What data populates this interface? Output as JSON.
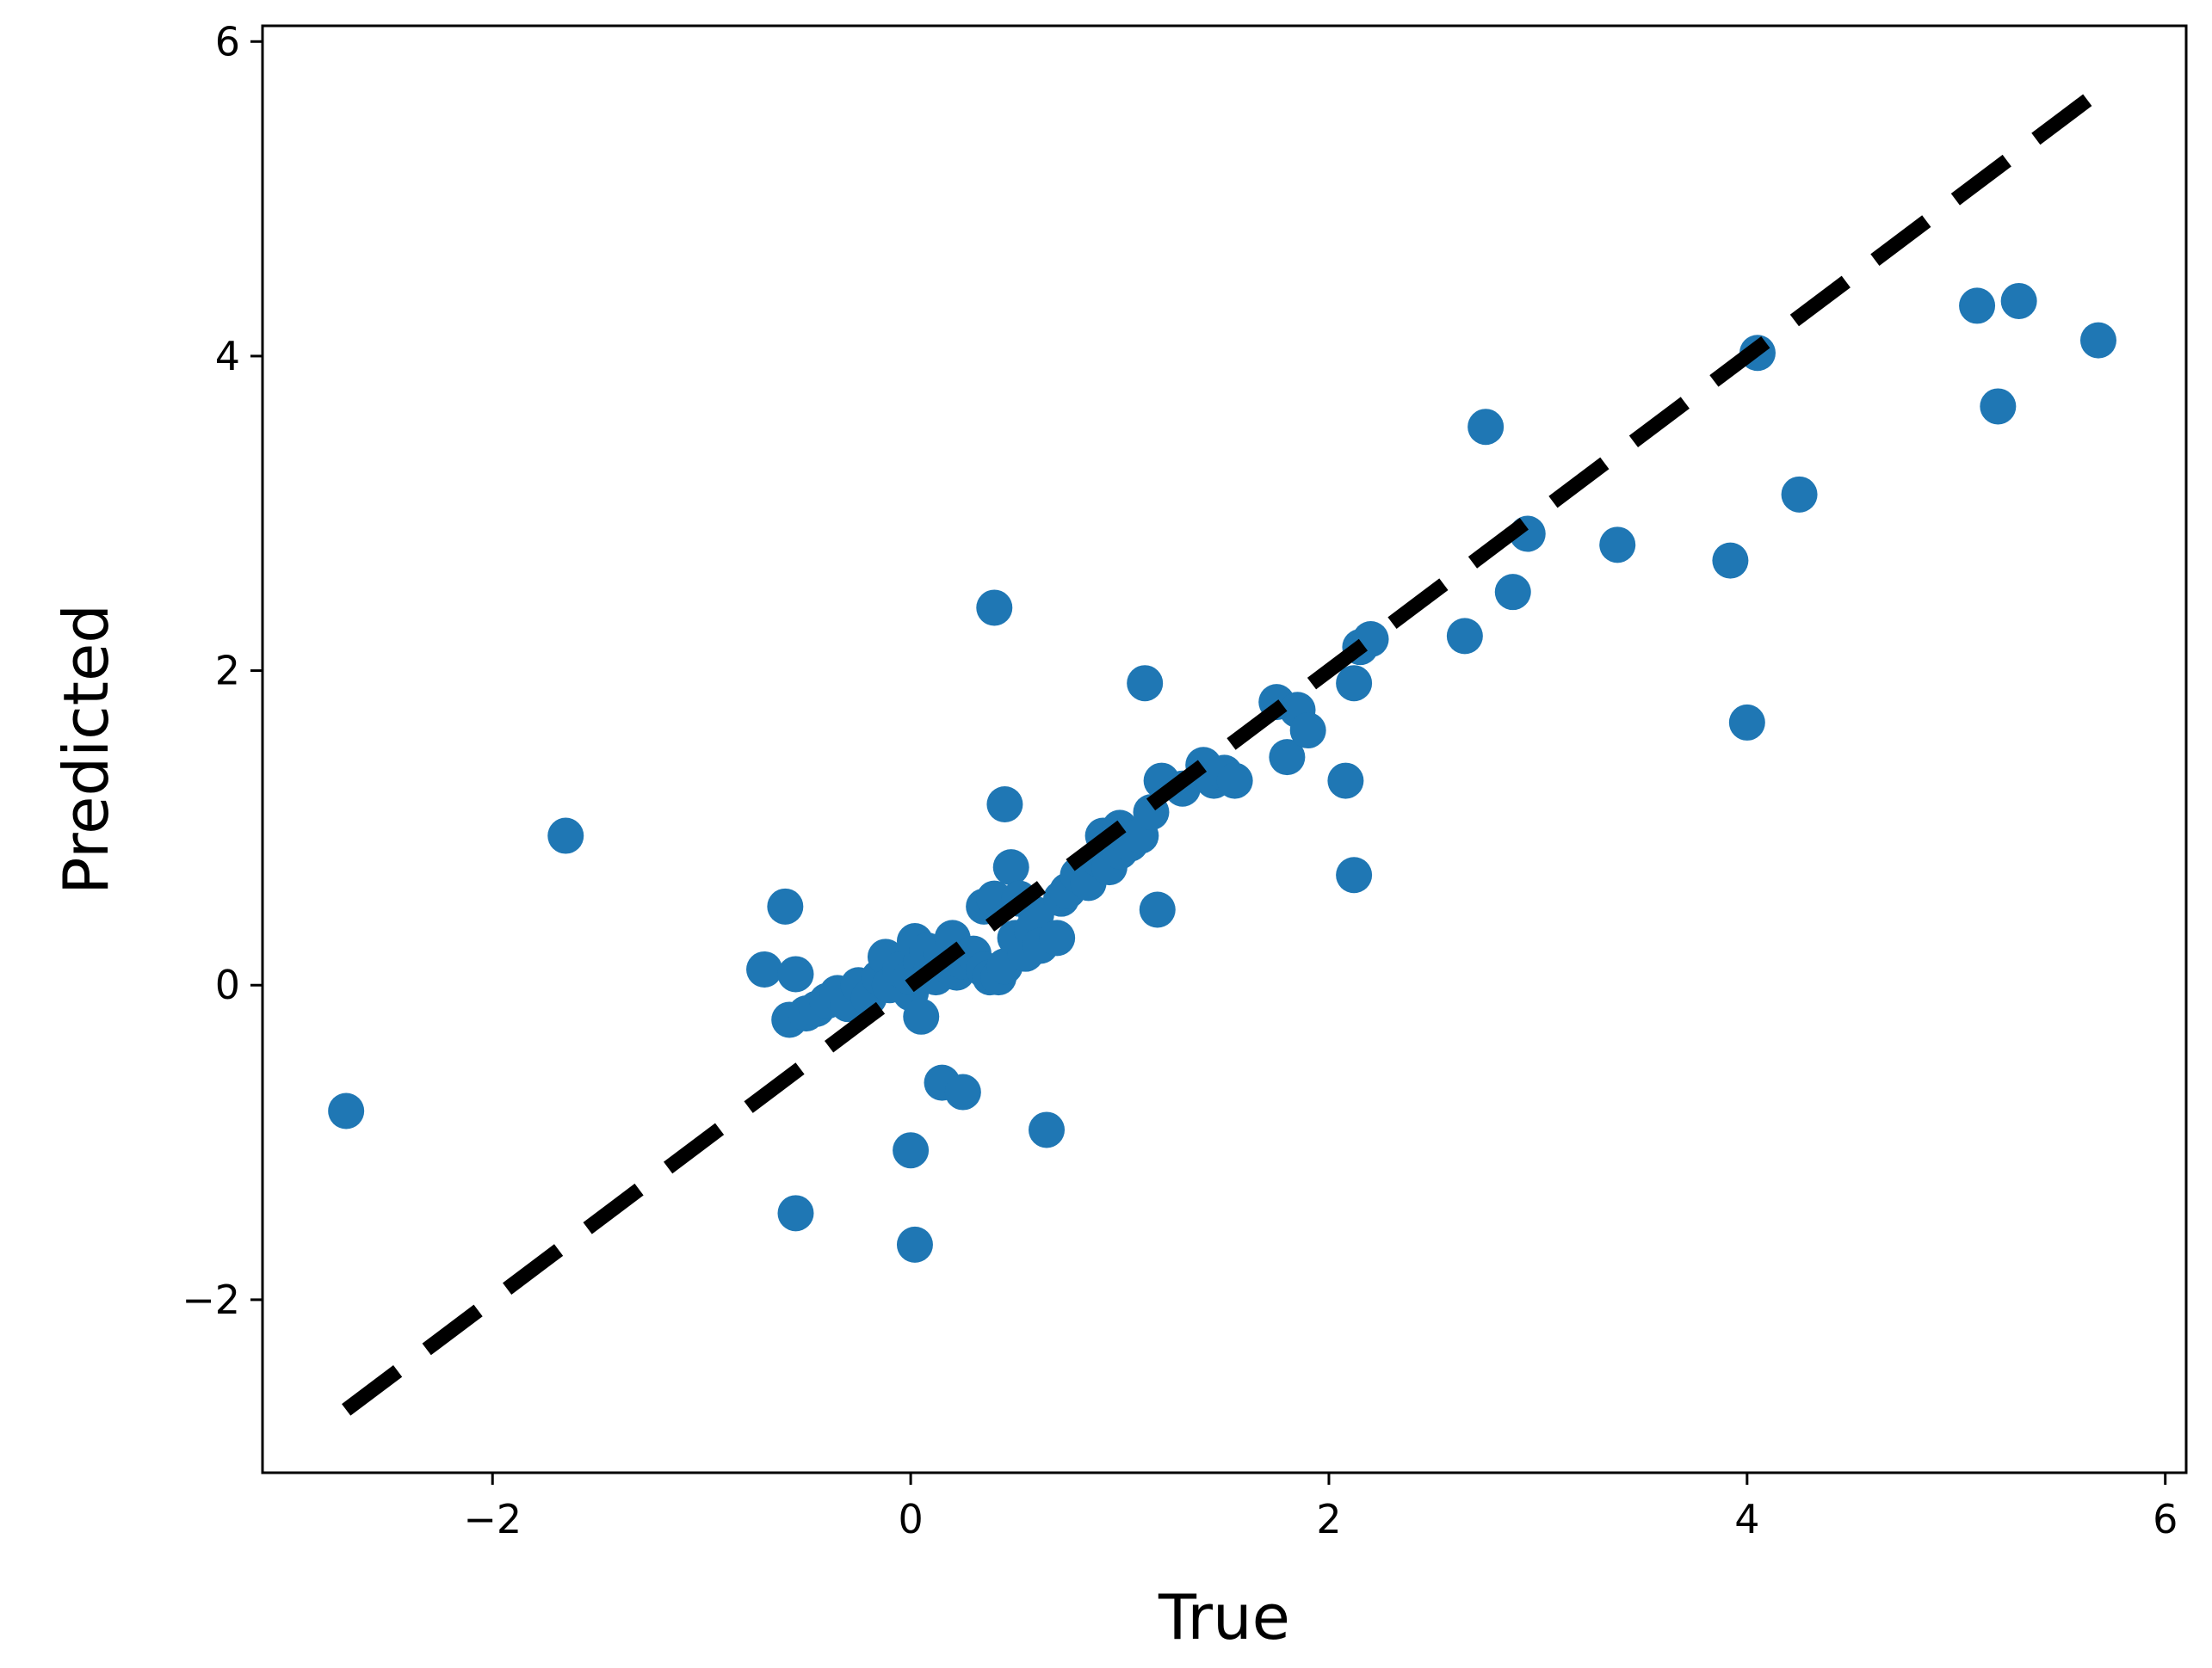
{
  "chart_data": {
    "type": "scatter",
    "title": "",
    "xlabel": "True",
    "ylabel": "Predicted",
    "xlim": [
      -3.1,
      6.1
    ],
    "ylim": [
      -3.1,
      6.1
    ],
    "xticks": [
      -2,
      0,
      2,
      4,
      6
    ],
    "yticks": [
      -2,
      0,
      2,
      4,
      6
    ],
    "xtick_labels": [
      "−2",
      "0",
      "2",
      "4",
      "6"
    ],
    "ytick_labels": [
      "−2",
      "0",
      "2",
      "4",
      "6"
    ],
    "grid": false,
    "marker_color": "#1f77b4",
    "reference_line": {
      "style": "dashed",
      "color": "#000000",
      "x": [
        -2.7,
        5.68
      ],
      "y": [
        -2.7,
        5.68
      ]
    },
    "points": [
      [
        -2.7,
        -0.8
      ],
      [
        -1.65,
        0.95
      ],
      [
        -0.7,
        0.1
      ],
      [
        -0.6,
        0.5
      ],
      [
        -0.58,
        -0.22
      ],
      [
        -0.55,
        0.07
      ],
      [
        -0.55,
        -1.45
      ],
      [
        -0.5,
        -0.18
      ],
      [
        -0.45,
        -0.15
      ],
      [
        -0.4,
        -0.1
      ],
      [
        -0.35,
        -0.05
      ],
      [
        -0.3,
        -0.12
      ],
      [
        -0.25,
        0.0
      ],
      [
        -0.2,
        -0.08
      ],
      [
        -0.15,
        0.05
      ],
      [
        -0.12,
        0.18
      ],
      [
        -0.1,
        0.0
      ],
      [
        -0.05,
        0.1
      ],
      [
        0.0,
        -0.05
      ],
      [
        0.0,
        0.05
      ],
      [
        0.0,
        -1.05
      ],
      [
        0.02,
        -1.65
      ],
      [
        0.02,
        0.28
      ],
      [
        0.05,
        0.15
      ],
      [
        0.05,
        -0.2
      ],
      [
        0.08,
        0.22
      ],
      [
        0.1,
        0.1
      ],
      [
        0.12,
        0.05
      ],
      [
        0.15,
        -0.62
      ],
      [
        0.15,
        0.2
      ],
      [
        0.18,
        0.12
      ],
      [
        0.2,
        0.3
      ],
      [
        0.22,
        0.08
      ],
      [
        0.25,
        -0.68
      ],
      [
        0.25,
        0.15
      ],
      [
        0.3,
        0.2
      ],
      [
        0.35,
        0.1
      ],
      [
        0.35,
        0.5
      ],
      [
        0.38,
        0.05
      ],
      [
        0.4,
        0.55
      ],
      [
        0.4,
        2.4
      ],
      [
        0.42,
        0.05
      ],
      [
        0.45,
        1.15
      ],
      [
        0.45,
        0.12
      ],
      [
        0.48,
        0.75
      ],
      [
        0.5,
        0.3
      ],
      [
        0.52,
        0.55
      ],
      [
        0.55,
        0.2
      ],
      [
        0.58,
        0.35
      ],
      [
        0.6,
        0.45
      ],
      [
        0.62,
        0.25
      ],
      [
        0.65,
        -0.92
      ],
      [
        0.7,
        0.3
      ],
      [
        0.72,
        0.55
      ],
      [
        0.75,
        0.6
      ],
      [
        0.8,
        0.7
      ],
      [
        0.85,
        0.65
      ],
      [
        0.9,
        0.8
      ],
      [
        0.92,
        0.95
      ],
      [
        0.95,
        0.75
      ],
      [
        1.0,
        0.85
      ],
      [
        1.0,
        1.0
      ],
      [
        1.05,
        0.9
      ],
      [
        1.1,
        0.95
      ],
      [
        1.12,
        1.92
      ],
      [
        1.15,
        1.1
      ],
      [
        1.18,
        0.48
      ],
      [
        1.2,
        1.3
      ],
      [
        1.3,
        1.25
      ],
      [
        1.4,
        1.4
      ],
      [
        1.45,
        1.3
      ],
      [
        1.5,
        1.35
      ],
      [
        1.55,
        1.3
      ],
      [
        1.75,
        1.8
      ],
      [
        1.8,
        1.45
      ],
      [
        1.85,
        1.75
      ],
      [
        1.9,
        1.62
      ],
      [
        2.08,
        1.3
      ],
      [
        2.12,
        0.7
      ],
      [
        2.12,
        1.92
      ],
      [
        2.15,
        2.15
      ],
      [
        2.2,
        2.2
      ],
      [
        2.65,
        2.22
      ],
      [
        2.75,
        3.55
      ],
      [
        2.88,
        2.5
      ],
      [
        2.95,
        2.87
      ],
      [
        3.38,
        2.8
      ],
      [
        3.92,
        2.7
      ],
      [
        4.0,
        1.67
      ],
      [
        4.05,
        4.02
      ],
      [
        4.25,
        3.12
      ],
      [
        5.1,
        4.32
      ],
      [
        5.2,
        3.68
      ],
      [
        5.3,
        4.35
      ],
      [
        5.68,
        4.1
      ]
    ]
  }
}
